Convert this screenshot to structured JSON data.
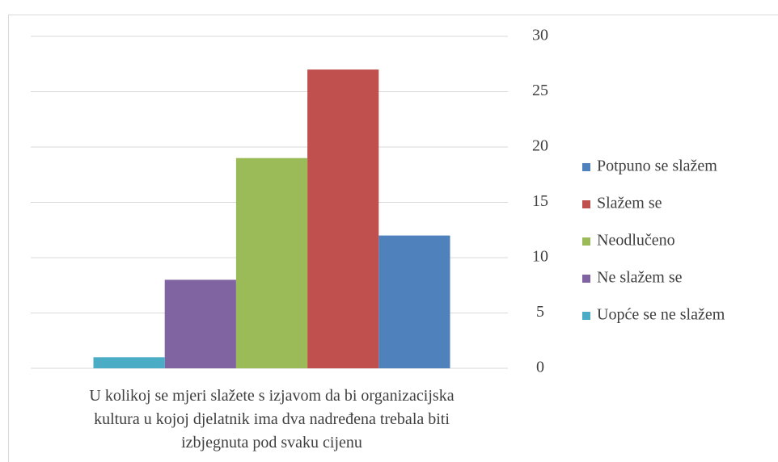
{
  "chart_data": {
    "type": "bar",
    "categories": [
      "U kolikoj se mjeri slažete s izjavom da bi organizacijska kultura u kojoj djelatnik ima dva nadređena trebala biti izbjegnuta pod svaku cijenu"
    ],
    "series": [
      {
        "name": "Potpuno se slažem",
        "color": "#4f81bd",
        "values": [
          12
        ]
      },
      {
        "name": "Slažem se",
        "color": "#c0504d",
        "values": [
          27
        ]
      },
      {
        "name": "Neodlučeno",
        "color": "#9bbb59",
        "values": [
          19
        ]
      },
      {
        "name": "Ne slažem se",
        "color": "#8064a2",
        "values": [
          8
        ]
      },
      {
        "name": "Uopće se ne slažem",
        "color": "#4bacc6",
        "values": [
          1
        ]
      }
    ],
    "ylim": [
      0,
      30
    ],
    "yticks": [
      0,
      5,
      10,
      15,
      20,
      25,
      30
    ],
    "grid": true,
    "legend": "right"
  }
}
